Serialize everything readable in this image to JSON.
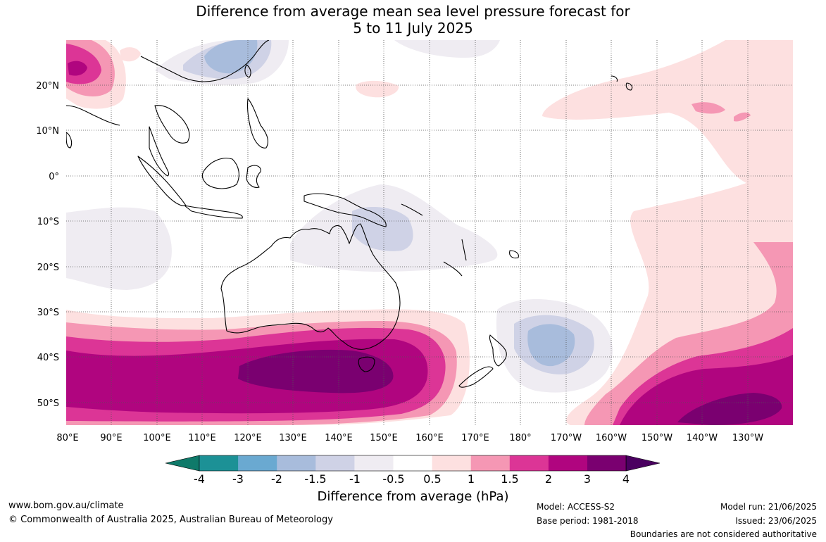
{
  "title": {
    "line1": "Difference from average mean sea level pressure forecast for",
    "line2": "5 to 11 July 2025"
  },
  "longitude_labels": [
    "80°E",
    "90°E",
    "100°E",
    "110°E",
    "120°E",
    "130°E",
    "140°E",
    "150°E",
    "160°E",
    "170°E",
    "180°",
    "170°W",
    "160°W",
    "150°W",
    "140°W",
    "130°W"
  ],
  "latitude_labels": [
    "20°N",
    "10°N",
    "0°",
    "10°S",
    "20°S",
    "30°S",
    "40°S",
    "50°S"
  ],
  "colorbar": {
    "title": "Difference from average (hPa)",
    "tick_labels": [
      "-4",
      "-3",
      "-2",
      "-1.5",
      "-1",
      "-0.5",
      "0.5",
      "1",
      "1.5",
      "2",
      "3",
      "4"
    ],
    "colors": [
      "#0f7a6a",
      "#1c9196",
      "#6aa9d1",
      "#a8bcdc",
      "#cfd2e6",
      "#efecf2",
      "#ffffff",
      "#fde0e0",
      "#f597b4",
      "#dc3596",
      "#b0057f",
      "#7a0070",
      "#4a0060"
    ]
  },
  "footer": {
    "website": "www.bom.gov.au/climate",
    "copyright": "© Commonwealth of Australia 2025, Australian Bureau of Meteorology",
    "model": "Model: ACCESS-S2",
    "base_period": "Base period: 1981-2018",
    "model_run": "Model run: 21/06/2025",
    "issued": "Issued: 23/06/2025",
    "disclaimer": "Boundaries are not considered authoritative"
  }
}
